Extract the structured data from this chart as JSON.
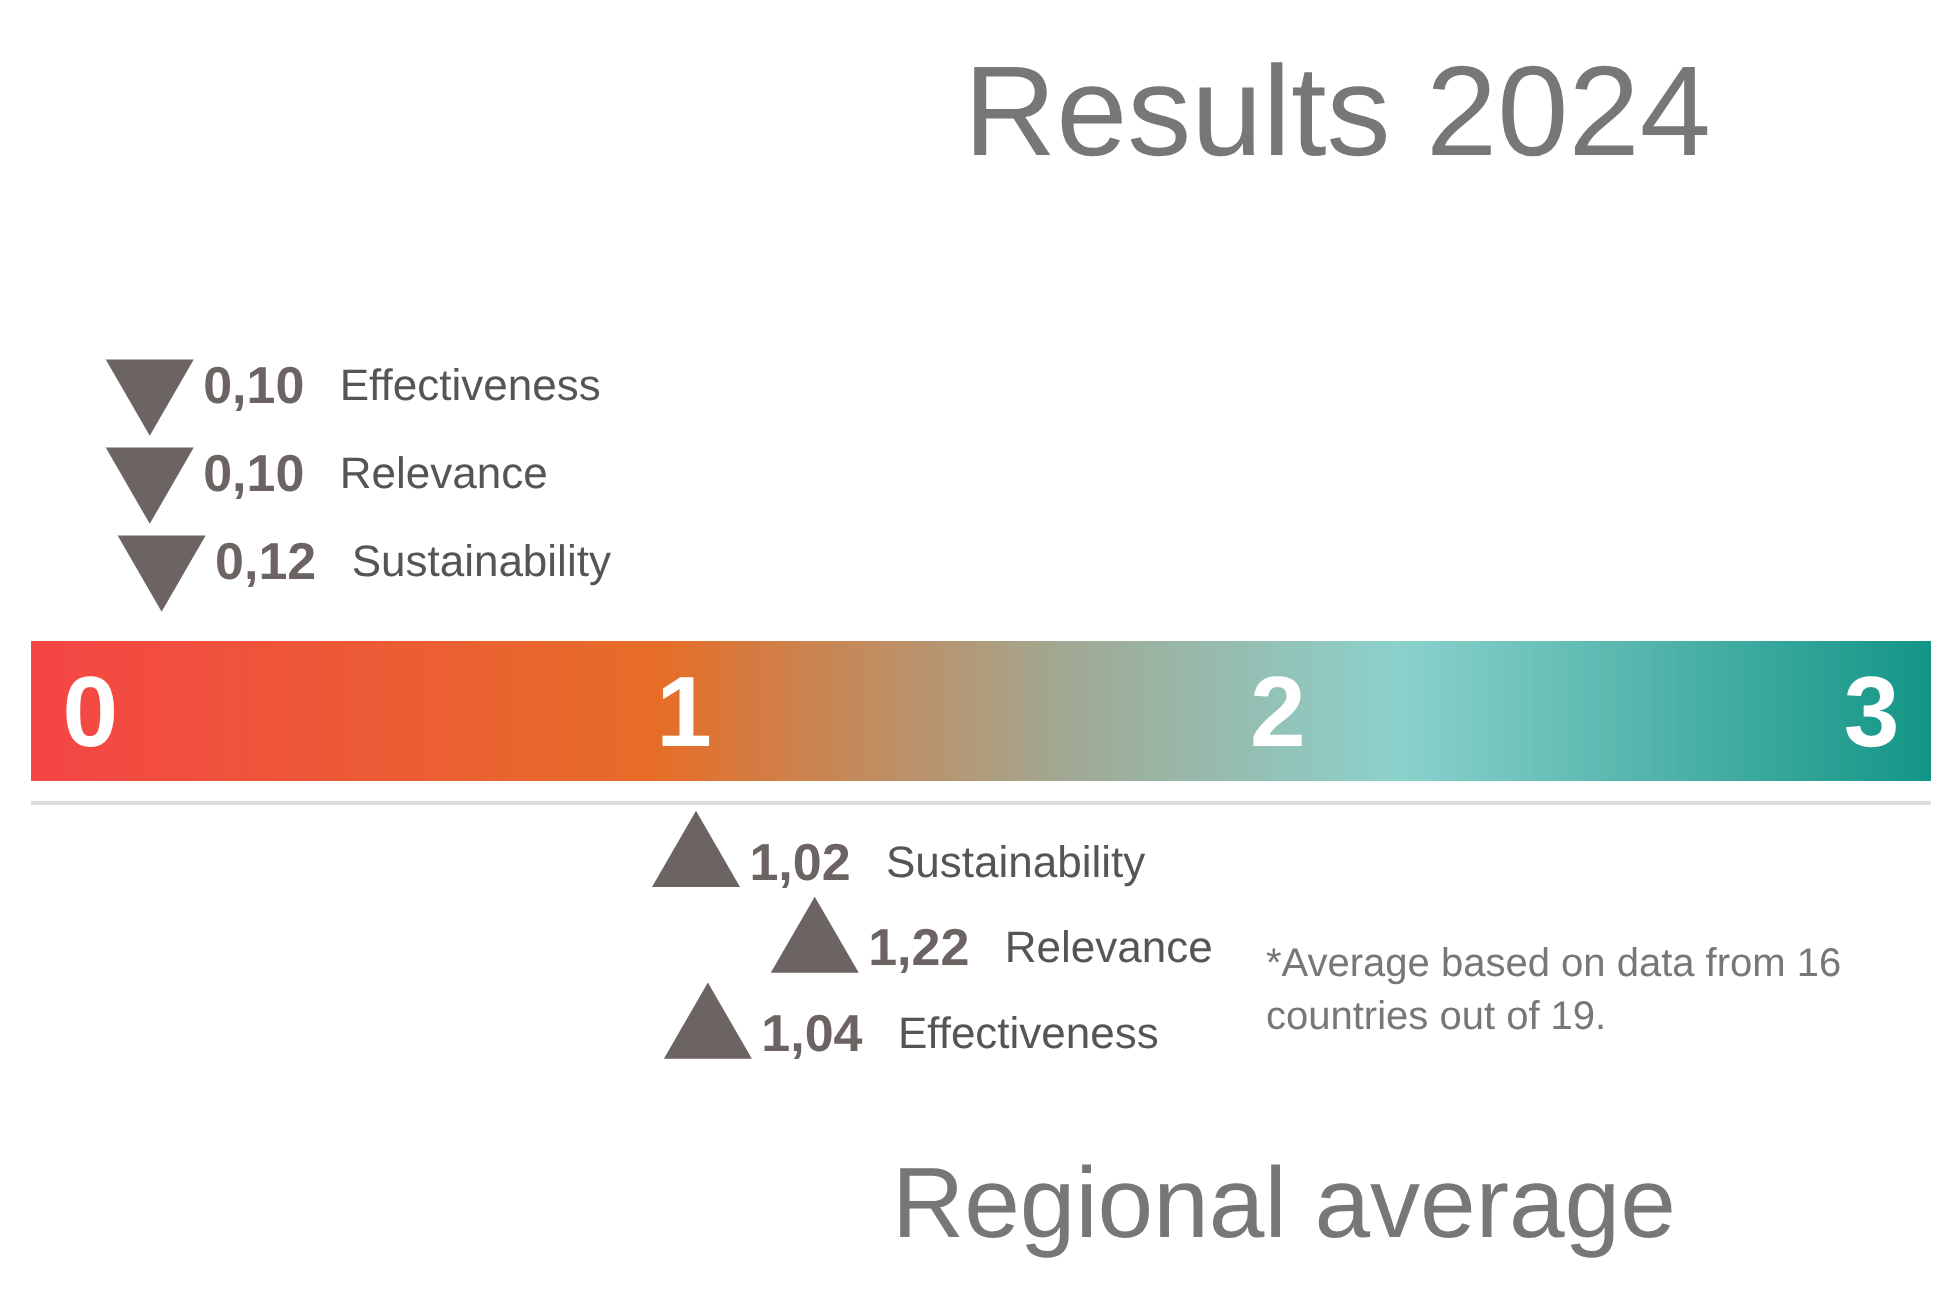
{
  "chart_data": [
    {
      "type": "scatter",
      "orientation": "horizontal",
      "title": "Results 2024",
      "categories": [
        "Effectiveness",
        "Relevance",
        "Sustainability"
      ],
      "series": [
        {
          "color": "#6b6462",
          "values": [
            0.1,
            0.1,
            0.12
          ],
          "value_labels": [
            "0,10",
            "0,10",
            "0,12"
          ]
        }
      ],
      "marker": "triangle",
      "xlim": [
        -0.1,
        3.1
      ],
      "xticks": [
        0,
        1,
        2,
        3
      ]
    },
    {
      "type": "scatter",
      "orientation": "horizontal",
      "title": "Regional average",
      "categories": [
        "Sustainability",
        "Relevance",
        "Effectiveness"
      ],
      "series": [
        {
          "color": "#6b6462",
          "values": [
            1.02,
            1.22,
            1.04
          ],
          "value_labels": [
            "1,02",
            "1,22",
            "1,04"
          ]
        }
      ],
      "marker": "triangle",
      "xlim": [
        -0.1,
        3.1
      ],
      "xticks": [
        0,
        1,
        2,
        3
      ],
      "tick_labels": false,
      "annotations": [
        "*Average based on data from 16\ncountries out of 19."
      ]
    }
  ]
}
